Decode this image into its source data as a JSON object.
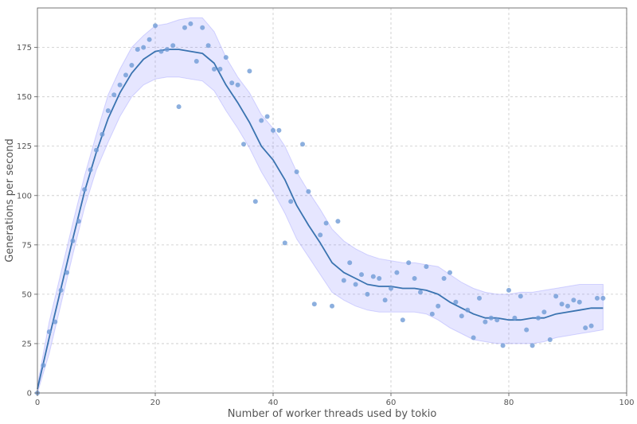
{
  "chart_data": {
    "type": "scatter",
    "xlabel": "Number of worker threads used by tokio",
    "ylabel": "Generations per second",
    "xlim": [
      0,
      100
    ],
    "ylim": [
      0,
      195
    ],
    "x_ticks": [
      0,
      20,
      40,
      60,
      80,
      100
    ],
    "y_ticks": [
      0,
      25,
      50,
      75,
      100,
      125,
      150,
      175
    ],
    "grid": true,
    "colors": {
      "points": "#6f9bd6",
      "line": "#3a73b0",
      "band": "#6666ff"
    },
    "series": [
      {
        "type": "scatter",
        "x": [
          0,
          1,
          2,
          3,
          4,
          5,
          6,
          7,
          8,
          9,
          10,
          11,
          12,
          13,
          14,
          15,
          16,
          17,
          18,
          19,
          20,
          21,
          22,
          23,
          24,
          25,
          26,
          27,
          28,
          29,
          30,
          31,
          32,
          33,
          34,
          35,
          36,
          37,
          38,
          39,
          40,
          41,
          42,
          43,
          44,
          45,
          46,
          47,
          48,
          49,
          50,
          51,
          52,
          53,
          54,
          55,
          56,
          57,
          58,
          59,
          60,
          61,
          62,
          63,
          64,
          65,
          66,
          67,
          68,
          69,
          70,
          71,
          72,
          73,
          74,
          75,
          76,
          77,
          78,
          79,
          80,
          81,
          82,
          83,
          84,
          85,
          86,
          87,
          88,
          89,
          90,
          91,
          92,
          93,
          94,
          95,
          96
        ],
        "y": [
          0,
          14,
          31,
          36,
          52,
          61,
          77,
          87,
          103,
          113,
          123,
          131,
          143,
          151,
          156,
          161,
          166,
          174,
          175,
          179,
          186,
          173,
          174,
          176,
          145,
          185,
          187,
          168,
          185,
          176,
          164,
          164,
          170,
          157,
          156,
          126,
          163,
          97,
          138,
          140,
          133,
          133,
          76,
          97,
          112,
          126,
          102,
          45,
          80,
          86,
          44,
          87,
          57,
          66,
          55,
          60,
          50,
          59,
          58,
          47,
          53,
          61,
          37,
          66,
          58,
          51,
          64,
          40,
          44,
          58,
          61,
          46,
          39,
          42,
          28,
          48,
          36,
          38,
          37,
          24,
          52,
          38,
          49,
          32,
          24,
          38,
          41,
          27,
          49,
          45,
          44,
          47,
          46,
          33,
          34,
          48,
          48
        ]
      },
      {
        "type": "line",
        "x": [
          0,
          2,
          4,
          6,
          8,
          10,
          12,
          14,
          16,
          18,
          20,
          22,
          24,
          26,
          28,
          30,
          32,
          34,
          36,
          38,
          40,
          42,
          44,
          46,
          48,
          50,
          52,
          54,
          56,
          58,
          60,
          62,
          64,
          66,
          68,
          70,
          72,
          74,
          76,
          78,
          80,
          82,
          84,
          86,
          88,
          90,
          92,
          94,
          96
        ],
        "y": [
          2,
          28,
          53,
          78,
          102,
          122,
          139,
          152,
          162,
          169,
          173,
          174,
          174,
          173,
          172,
          167,
          156,
          147,
          137,
          125,
          118,
          108,
          95,
          85,
          76,
          66,
          61,
          58,
          55,
          54,
          54,
          53,
          53,
          52,
          50,
          46,
          43,
          40,
          38,
          38,
          37,
          37,
          38,
          38,
          40,
          41,
          42,
          43,
          43
        ]
      },
      {
        "type": "band",
        "x": [
          0,
          2,
          4,
          6,
          8,
          10,
          12,
          14,
          16,
          18,
          20,
          22,
          24,
          26,
          28,
          30,
          32,
          34,
          36,
          38,
          40,
          42,
          44,
          46,
          48,
          50,
          52,
          54,
          56,
          58,
          60,
          62,
          64,
          66,
          68,
          70,
          72,
          74,
          76,
          78,
          80,
          82,
          84,
          86,
          88,
          90,
          92,
          94,
          96
        ],
        "lower": [
          0,
          20,
          45,
          70,
          94,
          113,
          127,
          140,
          150,
          156,
          159,
          160,
          160,
          159,
          158,
          153,
          143,
          134,
          124,
          112,
          102,
          91,
          78,
          69,
          60,
          51,
          47,
          44,
          42,
          41,
          41,
          41,
          41,
          40,
          37,
          33,
          30,
          27,
          26,
          25,
          25,
          25,
          25,
          26,
          28,
          29,
          30,
          31,
          32
        ],
        "upper": [
          4,
          36,
          61,
          86,
          110,
          131,
          151,
          164,
          175,
          181,
          186,
          187,
          189,
          190,
          190,
          183,
          170,
          160,
          152,
          141,
          134,
          125,
          112,
          102,
          93,
          83,
          77,
          73,
          70,
          68,
          67,
          66,
          66,
          65,
          64,
          60,
          56,
          53,
          51,
          50,
          50,
          51,
          51,
          52,
          53,
          54,
          55,
          55,
          55
        ]
      }
    ]
  }
}
